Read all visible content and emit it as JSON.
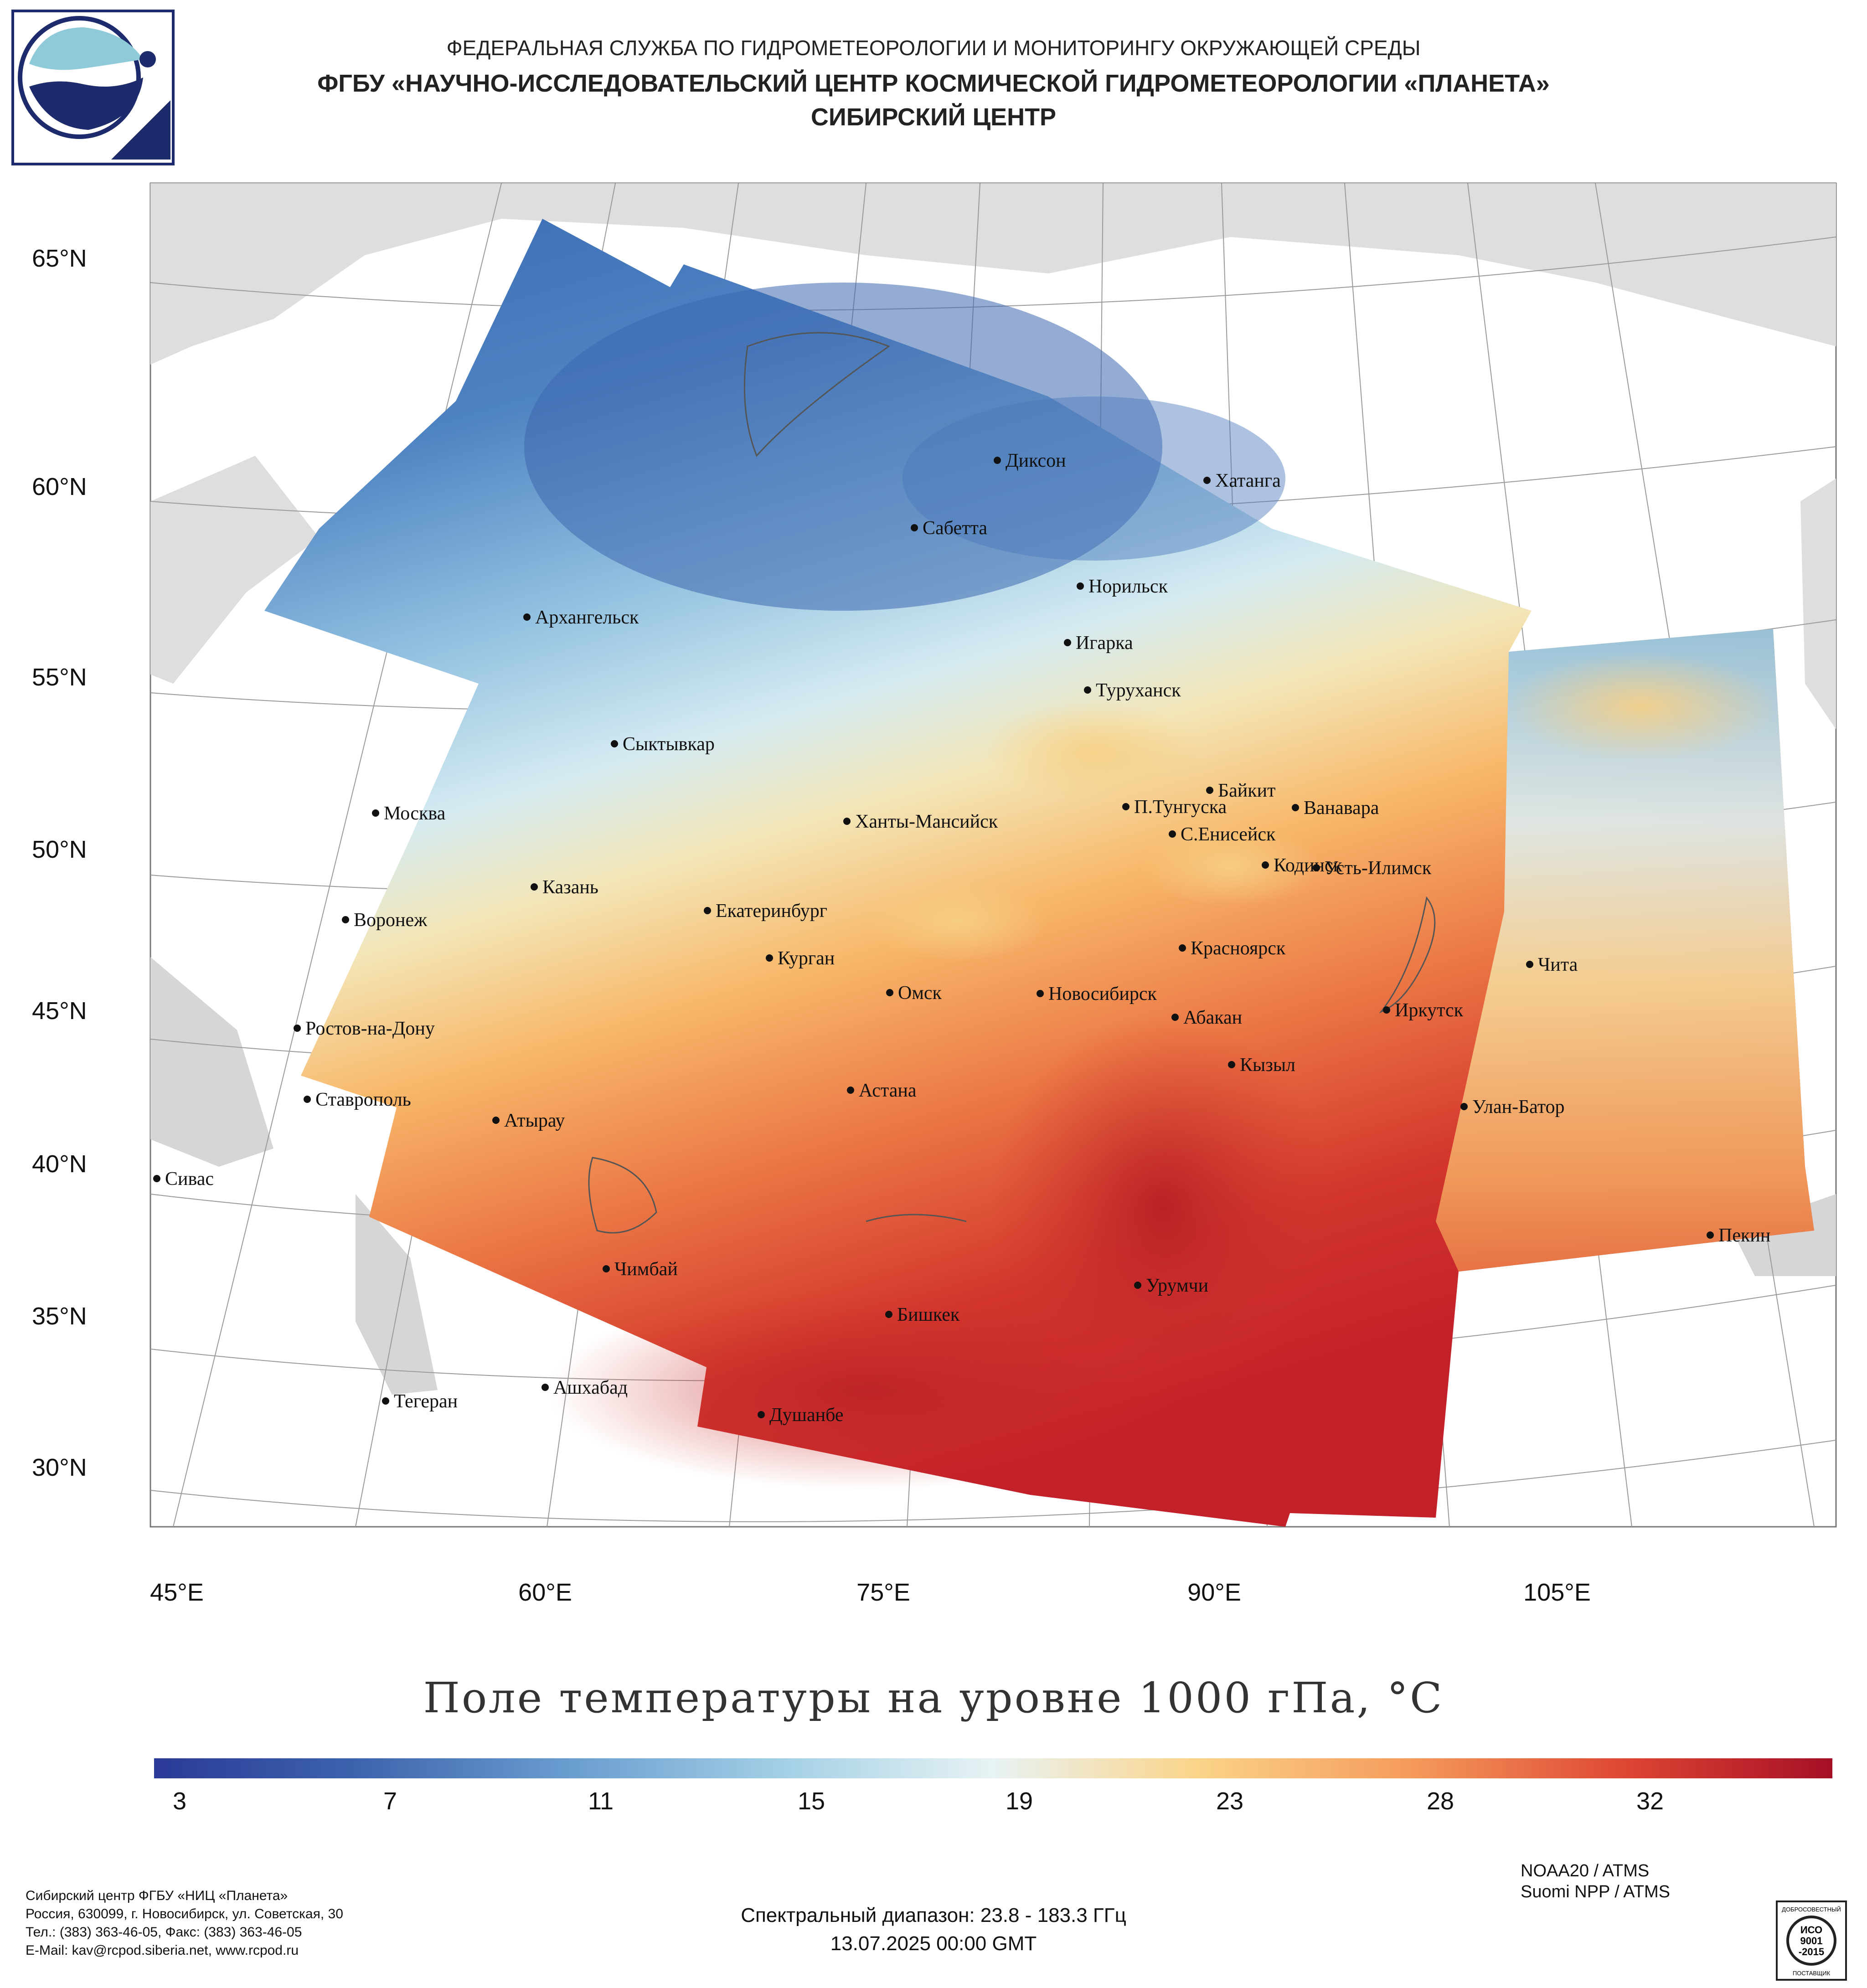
{
  "header": {
    "line1": "ФЕДЕРАЛЬНАЯ СЛУЖБА ПО ГИДРОМЕТЕОРОЛОГИИ И МОНИТОРИНГУ ОКРУЖАЮЩЕЙ СРЕДЫ",
    "line2": "ФГБУ «НАУЧНО-ИССЛЕДОВАТЕЛЬСКИЙ ЦЕНТР КОСМИЧЕСКОЙ ГИДРОМЕТЕОРОЛОГИИ «ПЛАНЕТА»",
    "line3": "СИБИРСКИЙ ЦЕНТР"
  },
  "map": {
    "lat_labels": [
      "65°N",
      "60°N",
      "55°N",
      "50°N",
      "45°N",
      "40°N",
      "35°N",
      "30°N"
    ],
    "lon_labels": [
      "45°E",
      "60°E",
      "75°E",
      "90°E",
      "105°E"
    ],
    "cities": [
      "Диксон",
      "Хатанга",
      "Сабетта",
      "Норильск",
      "Архангельск",
      "Игарка",
      "Туруханск",
      "Сыктывкар",
      "Байкит",
      "П.Тунгуска",
      "Ванавара",
      "Москва",
      "Ханты-Мансийск",
      "С.Енисейск",
      "Кодинск",
      "Усть-Илимск",
      "Казань",
      "Екатеринбург",
      "Воронеж",
      "Красноярск",
      "Курган",
      "Чита",
      "Омск",
      "Новосибирск",
      "Ростов-на-Дону",
      "Абакан",
      "Иркутск",
      "Кызыл",
      "Ставрополь",
      "Астана",
      "Улан-Батор",
      "Атырау",
      "Сивас",
      "Пекин",
      "Чимбай",
      "Урумчи",
      "Бишкек",
      "Ашхабад",
      "Тегеран",
      "Душанбе"
    ]
  },
  "map_title": "Поле температуры на уровне 1000 гПа, °C",
  "colorbar": {
    "ticks": [
      "3",
      "7",
      "11",
      "15",
      "19",
      "23",
      "28",
      "32"
    ],
    "colors": {
      "min": "#2b3a97",
      "mid": "#e8f3f4",
      "max": "#a50f26"
    }
  },
  "footer": {
    "org_lines": [
      "Сибирский центр ФГБУ «НИЦ «Планета»",
      "Россия, 630099, г. Новосибирск, ул. Советская, 30",
      "Тел.: (383) 363-46-05, Факс: (383) 363-46-05",
      "E-Mail: kav@rcpod.siberia.net, www.rcpod.ru"
    ],
    "spectral": "Спектральный диапазон: 23.8 - 183.3 ГГц",
    "datetime": "13.07.2025 00:00 GMT",
    "instrument1": "NOAA20 / ATMS",
    "instrument2": "Suomi NPP / ATMS",
    "iso_lines": [
      "ДОБРОСОВЕСТНЫЙ",
      "ИСО",
      "9001",
      "-2015",
      "ПОСТАВЩИК"
    ]
  }
}
